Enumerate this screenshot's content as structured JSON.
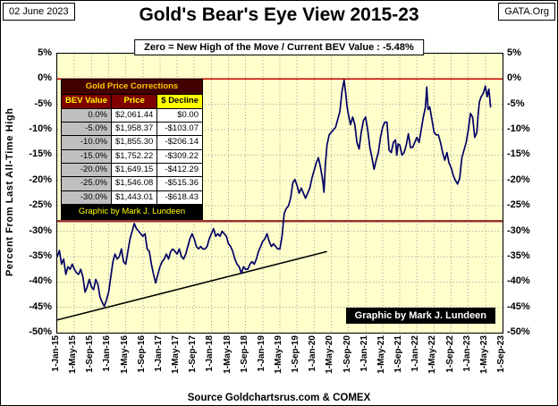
{
  "header": {
    "date": "02 June 2023",
    "org": "GATA.Org",
    "title": "Gold's Bear's Eye View 2015-23",
    "subtitle": "Zero = New High of the Move / Current  BEV Value : -5.48%"
  },
  "table": {
    "title": "Gold Price Corrections",
    "columns": [
      "BEV Value",
      "Price",
      "$ Decline"
    ],
    "rows": [
      [
        "0.0%",
        "$2,061.44",
        "$0.00"
      ],
      [
        "-5.0%",
        "$1,958.37",
        "-$103.07"
      ],
      [
        "-10.0%",
        "$1,855.30",
        "-$206.14"
      ],
      [
        "-15.0%",
        "$1,752.22",
        "-$309.22"
      ],
      [
        "-20.0%",
        "$1,649.15",
        "-$412.29"
      ],
      [
        "-25.0%",
        "$1,546.08",
        "-$515.36"
      ],
      [
        "-30.0%",
        "$1,443.01",
        "-$618.43"
      ]
    ],
    "credit": "Graphic by Mark J. Lundeen"
  },
  "footer": {
    "source": "Source Goldchartsrus.com & COMEX",
    "credit": "Graphic by Mark J. Lundeen"
  },
  "chart_data": {
    "type": "line",
    "title": "Gold's Bear's Eye View 2015-23",
    "ylabel": "Percent  From Last All-Time High",
    "ylim": [
      -50,
      5
    ],
    "y_ticks": [
      "5%",
      "0%",
      "-5%",
      "-10%",
      "-15%",
      "-20%",
      "-25%",
      "-30%",
      "-35%",
      "-40%",
      "-45%",
      "-50%"
    ],
    "x_tick_labels": [
      "1-Jan-15",
      "1-May-15",
      "1-Sep-15",
      "1-Jan-16",
      "1-May-16",
      "1-Sep-16",
      "1-Jan-17",
      "1-May-17",
      "1-Sep-17",
      "1-Jan-18",
      "1-May-18",
      "1-Sep-18",
      "1-Jan-19",
      "1-May-19",
      "1-Sep-19",
      "1-Jan-20",
      "1-May-20",
      "1-Sep-20",
      "1-Jan-21",
      "1-May-21",
      "1-Sep-21",
      "1-Jan-22",
      "1-May-22",
      "1-Sep-22",
      "1-Jan-23",
      "1-May-23",
      "1-Sep-23"
    ],
    "x_range_months": [
      0,
      104
    ],
    "plot_bg": "#FFFFCC",
    "grid": true,
    "current_bev_pct": -5.48,
    "reference_lines": [
      {
        "y": 0,
        "color": "#C00000",
        "width": 1.3
      },
      {
        "y": -28,
        "color": "#963634",
        "width": 2.2
      }
    ],
    "trend_line": {
      "from": [
        0,
        -47.5
      ],
      "to": [
        63,
        -34
      ],
      "color": "#000000",
      "width": 1.5
    },
    "series": [
      {
        "name": "Gold Bear's Eye View (% from last all-time high)",
        "color": "#000066",
        "points": [
          [
            0,
            -35
          ],
          [
            0.5,
            -33.8
          ],
          [
            1,
            -36.5
          ],
          [
            1.5,
            -35.5
          ],
          [
            2,
            -38.5
          ],
          [
            2.5,
            -37
          ],
          [
            3,
            -37.5
          ],
          [
            3.5,
            -36.5
          ],
          [
            4,
            -37.5
          ],
          [
            4.5,
            -38.2
          ],
          [
            5,
            -38.5
          ],
          [
            5.5,
            -37.5
          ],
          [
            6,
            -39
          ],
          [
            6.5,
            -42
          ],
          [
            7,
            -41
          ],
          [
            7.5,
            -39.5
          ],
          [
            8,
            -41
          ],
          [
            8.5,
            -41.5
          ],
          [
            9,
            -39.5
          ],
          [
            9.5,
            -40.5
          ],
          [
            10,
            -43
          ],
          [
            10.5,
            -44
          ],
          [
            11,
            -44.8
          ],
          [
            11.5,
            -43.5
          ],
          [
            12,
            -42
          ],
          [
            12.5,
            -39
          ],
          [
            13,
            -36
          ],
          [
            13.5,
            -34.5
          ],
          [
            14,
            -35.5
          ],
          [
            14.5,
            -35
          ],
          [
            15,
            -33.5
          ],
          [
            15.5,
            -36
          ],
          [
            16,
            -36.5
          ],
          [
            16.5,
            -34
          ],
          [
            17,
            -31.5
          ],
          [
            17.5,
            -30
          ],
          [
            18,
            -28.5
          ],
          [
            18.5,
            -29.5
          ],
          [
            19,
            -30
          ],
          [
            19.5,
            -30.5
          ],
          [
            20,
            -31
          ],
          [
            20.5,
            -30.5
          ],
          [
            21,
            -33.5
          ],
          [
            21.5,
            -34
          ],
          [
            22,
            -36.5
          ],
          [
            22.5,
            -38.5
          ],
          [
            23,
            -40.2
          ],
          [
            23.5,
            -38.5
          ],
          [
            24,
            -37
          ],
          [
            24.5,
            -36
          ],
          [
            25,
            -35.5
          ],
          [
            25.5,
            -34.5
          ],
          [
            26,
            -35.5
          ],
          [
            26.5,
            -34
          ],
          [
            27,
            -33.5
          ],
          [
            27.5,
            -34
          ],
          [
            28,
            -34.5
          ],
          [
            28.5,
            -33.5
          ],
          [
            29,
            -35
          ],
          [
            29.5,
            -35.5
          ],
          [
            30,
            -34.5
          ],
          [
            30.5,
            -33
          ],
          [
            31,
            -31.5
          ],
          [
            31.5,
            -30.5
          ],
          [
            32,
            -31.5
          ],
          [
            32.5,
            -33
          ],
          [
            33,
            -33.5
          ],
          [
            33.5,
            -33
          ],
          [
            34,
            -33.5
          ],
          [
            34.5,
            -33.5
          ],
          [
            35,
            -33
          ],
          [
            35.5,
            -31.5
          ],
          [
            36,
            -30.5
          ],
          [
            36.5,
            -29.5
          ],
          [
            37,
            -31
          ],
          [
            37.5,
            -30.5
          ],
          [
            38,
            -31
          ],
          [
            38.5,
            -30
          ],
          [
            39,
            -30.5
          ],
          [
            39.5,
            -31
          ],
          [
            40,
            -32.5
          ],
          [
            40.5,
            -33
          ],
          [
            41,
            -34
          ],
          [
            41.5,
            -35.5
          ],
          [
            42,
            -36.5
          ],
          [
            42.5,
            -37
          ],
          [
            43,
            -38.3
          ],
          [
            43.5,
            -37
          ],
          [
            44,
            -37.5
          ],
          [
            44.5,
            -37.5
          ],
          [
            45,
            -36.5
          ],
          [
            45.5,
            -36
          ],
          [
            46,
            -36.5
          ],
          [
            46.5,
            -35.5
          ],
          [
            47,
            -34
          ],
          [
            47.5,
            -33
          ],
          [
            48,
            -32
          ],
          [
            48.5,
            -31.5
          ],
          [
            49,
            -30.5
          ],
          [
            49.5,
            -32
          ],
          [
            50,
            -33
          ],
          [
            50.5,
            -32.5
          ],
          [
            51,
            -33
          ],
          [
            51.5,
            -33.5
          ],
          [
            52,
            -33.5
          ],
          [
            52.5,
            -31
          ],
          [
            53,
            -26.5
          ],
          [
            53.5,
            -25.5
          ],
          [
            54,
            -25
          ],
          [
            54.5,
            -23.5
          ],
          [
            55,
            -20.5
          ],
          [
            55.5,
            -19.8
          ],
          [
            56,
            -21
          ],
          [
            56.5,
            -22.5
          ],
          [
            57,
            -21.5
          ],
          [
            57.5,
            -22.5
          ],
          [
            58,
            -23.5
          ],
          [
            58.5,
            -22.5
          ],
          [
            59,
            -21.5
          ],
          [
            59.5,
            -19.5
          ],
          [
            60,
            -18
          ],
          [
            60.5,
            -16.5
          ],
          [
            61,
            -15.5
          ],
          [
            61.5,
            -17.5
          ],
          [
            62,
            -20
          ],
          [
            62.3,
            -22.3
          ],
          [
            62.6,
            -17
          ],
          [
            63,
            -13
          ],
          [
            63.5,
            -11
          ],
          [
            64,
            -10.5
          ],
          [
            64.5,
            -10
          ],
          [
            65,
            -9.5
          ],
          [
            65.5,
            -8
          ],
          [
            66,
            -6.5
          ],
          [
            66.5,
            -2.5
          ],
          [
            67,
            -0.2
          ],
          [
            67.4,
            -3
          ],
          [
            67.7,
            -5.5
          ],
          [
            68,
            -7
          ],
          [
            68.5,
            -9
          ],
          [
            69,
            -7.5
          ],
          [
            69.5,
            -9
          ],
          [
            70,
            -12.5
          ],
          [
            70.5,
            -13.8
          ],
          [
            71,
            -10.5
          ],
          [
            71.5,
            -8.2
          ],
          [
            72,
            -7.5
          ],
          [
            72.5,
            -10
          ],
          [
            73,
            -13.5
          ],
          [
            73.5,
            -15.5
          ],
          [
            74,
            -17.8
          ],
          [
            74.5,
            -16
          ],
          [
            75,
            -14.5
          ],
          [
            75.5,
            -11.5
          ],
          [
            76,
            -9.5
          ],
          [
            76.5,
            -8.5
          ],
          [
            77,
            -8.5
          ],
          [
            77.5,
            -14
          ],
          [
            78,
            -14.5
          ],
          [
            78.5,
            -12.5
          ],
          [
            79,
            -12
          ],
          [
            79.3,
            -15
          ],
          [
            79.6,
            -12.8
          ],
          [
            80,
            -13
          ],
          [
            80.5,
            -15
          ],
          [
            81,
            -14.5
          ],
          [
            81.5,
            -13
          ],
          [
            82,
            -10.8
          ],
          [
            82.5,
            -13.5
          ],
          [
            83,
            -13.5
          ],
          [
            83.5,
            -12.5
          ],
          [
            84,
            -11.5
          ],
          [
            84.5,
            -12.5
          ],
          [
            85,
            -10
          ],
          [
            85.5,
            -7.5
          ],
          [
            86,
            -5.5
          ],
          [
            86.3,
            -1.6
          ],
          [
            86.6,
            -6
          ],
          [
            87,
            -5.5
          ],
          [
            87.5,
            -8
          ],
          [
            88,
            -10.5
          ],
          [
            88.5,
            -11
          ],
          [
            89,
            -11
          ],
          [
            89.5,
            -12.5
          ],
          [
            90,
            -14.5
          ],
          [
            90.5,
            -16
          ],
          [
            91,
            -14.5
          ],
          [
            91.5,
            -16.5
          ],
          [
            92,
            -17.5
          ],
          [
            92.5,
            -19
          ],
          [
            93,
            -20
          ],
          [
            93.5,
            -20.7
          ],
          [
            94,
            -19.5
          ],
          [
            94.5,
            -15.5
          ],
          [
            95,
            -14
          ],
          [
            95.5,
            -12.5
          ],
          [
            96,
            -10
          ],
          [
            96.5,
            -6.8
          ],
          [
            97,
            -7.5
          ],
          [
            97.5,
            -11.5
          ],
          [
            98,
            -10.5
          ],
          [
            98.3,
            -7
          ],
          [
            98.6,
            -4.5
          ],
          [
            99,
            -3.5
          ],
          [
            99.5,
            -2.8
          ],
          [
            100,
            -1.4
          ],
          [
            100.4,
            -3.5
          ],
          [
            100.8,
            -2
          ],
          [
            101.2,
            -5.48
          ]
        ]
      }
    ]
  }
}
